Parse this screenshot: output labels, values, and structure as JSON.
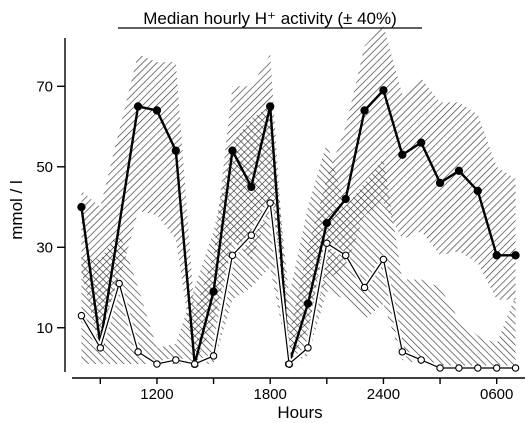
{
  "chart_data": {
    "type": "line",
    "title": "Median hourly H⁺ activity (± 40%)",
    "xlabel": "Hours",
    "ylabel": "mmol / l",
    "y_ticks": [
      10,
      30,
      50,
      70
    ],
    "x_ticks": [
      {
        "label": "1200",
        "hour": 12
      },
      {
        "label": "1800",
        "hour": 18
      },
      {
        "label": "2400",
        "hour": 24
      },
      {
        "label": "0600",
        "hour": 30
      }
    ],
    "xlim": [
      7.5,
      31.5
    ],
    "ylim": [
      0,
      82
    ],
    "series": [
      {
        "marker": "filled",
        "x": [
          8,
          9,
          11,
          12,
          13,
          14,
          15,
          16,
          17,
          18,
          19,
          20,
          21,
          22,
          23,
          24,
          25,
          26,
          27,
          28,
          29,
          30,
          31
        ],
        "values": [
          40,
          6,
          65,
          64,
          54,
          1,
          19,
          54,
          45,
          65,
          1,
          16,
          36,
          42,
          64,
          69,
          53,
          56,
          46,
          49,
          44,
          28,
          28
        ],
        "lower": [
          24,
          4,
          39,
          38,
          32,
          1,
          11,
          32,
          27,
          39,
          1,
          10,
          22,
          25,
          38,
          41,
          32,
          34,
          28,
          29,
          26,
          17,
          17
        ],
        "upper": [
          44,
          40,
          78,
          76,
          76,
          14,
          28,
          70,
          70,
          78,
          8,
          30,
          47,
          60,
          80,
          85,
          68,
          72,
          66,
          66,
          63,
          50,
          47
        ]
      },
      {
        "marker": "open",
        "x": [
          8,
          9,
          10,
          11,
          12,
          13,
          14,
          15,
          16,
          17,
          18,
          19,
          20,
          21,
          22,
          23,
          24,
          25,
          26,
          27,
          28,
          29,
          30,
          31
        ],
        "values": [
          13,
          5,
          21,
          4,
          1,
          2,
          1,
          3,
          28,
          33,
          41,
          1,
          5,
          31,
          28,
          20,
          27,
          4,
          2,
          0,
          0,
          0,
          0,
          0
        ],
        "lower": [
          1,
          1,
          1,
          1,
          1,
          1,
          1,
          1,
          17,
          20,
          25,
          1,
          3,
          19,
          17,
          12,
          16,
          2,
          1,
          0,
          0,
          0,
          0,
          0
        ],
        "upper": [
          28,
          27,
          34,
          20,
          5,
          6,
          20,
          34,
          56,
          62,
          65,
          18,
          40,
          56,
          40,
          46,
          52,
          22,
          22,
          20,
          12,
          8,
          6,
          18
        ]
      }
    ],
    "hatch_patterns": [
      "diagonal-up",
      "diagonal-down",
      "crosshatch"
    ],
    "colors": {
      "ink": "#000000",
      "background": "#ffffff",
      "hatch": "#333333"
    }
  }
}
